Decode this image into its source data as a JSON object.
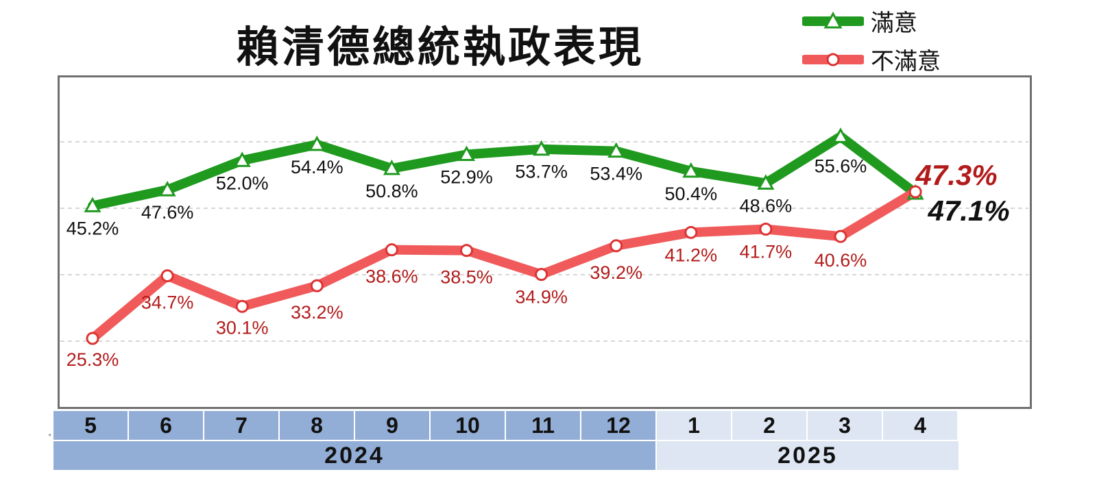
{
  "chart_data": {
    "type": "line",
    "title": "賴清德總統執政表現",
    "categories": [
      "5",
      "6",
      "7",
      "8",
      "9",
      "10",
      "11",
      "12",
      "1",
      "2",
      "3",
      "4"
    ],
    "years": [
      {
        "label": "2024",
        "months": 8
      },
      {
        "label": "2025",
        "months": 4
      }
    ],
    "series": [
      {
        "name": "滿意",
        "color": "#1f9a1f",
        "marker": "triangle",
        "values": [
          45.2,
          47.6,
          52.0,
          54.4,
          50.8,
          52.9,
          53.7,
          53.4,
          50.4,
          48.6,
          55.6,
          47.1
        ],
        "labels": [
          "45.2%",
          "47.6%",
          "52.0%",
          "54.4%",
          "50.8%",
          "52.9%",
          "53.7%",
          "53.4%",
          "50.4%",
          "48.6%",
          "55.6%",
          "47.1%"
        ]
      },
      {
        "name": "不滿意",
        "color": "#f05a5a",
        "marker": "circle",
        "values": [
          25.3,
          34.7,
          30.1,
          33.2,
          38.6,
          38.5,
          34.9,
          39.2,
          41.2,
          41.7,
          40.6,
          47.3
        ],
        "labels": [
          "25.3%",
          "34.7%",
          "30.1%",
          "33.2%",
          "38.6%",
          "38.5%",
          "34.9%",
          "39.2%",
          "41.2%",
          "41.7%",
          "40.6%",
          "47.3%"
        ]
      }
    ],
    "ylim": [
      15,
      62
    ],
    "grid": true,
    "legend_position": "top-right",
    "label_colors": {
      "satisfied": "#111111",
      "dissatisfied": "#b31b1b"
    }
  }
}
